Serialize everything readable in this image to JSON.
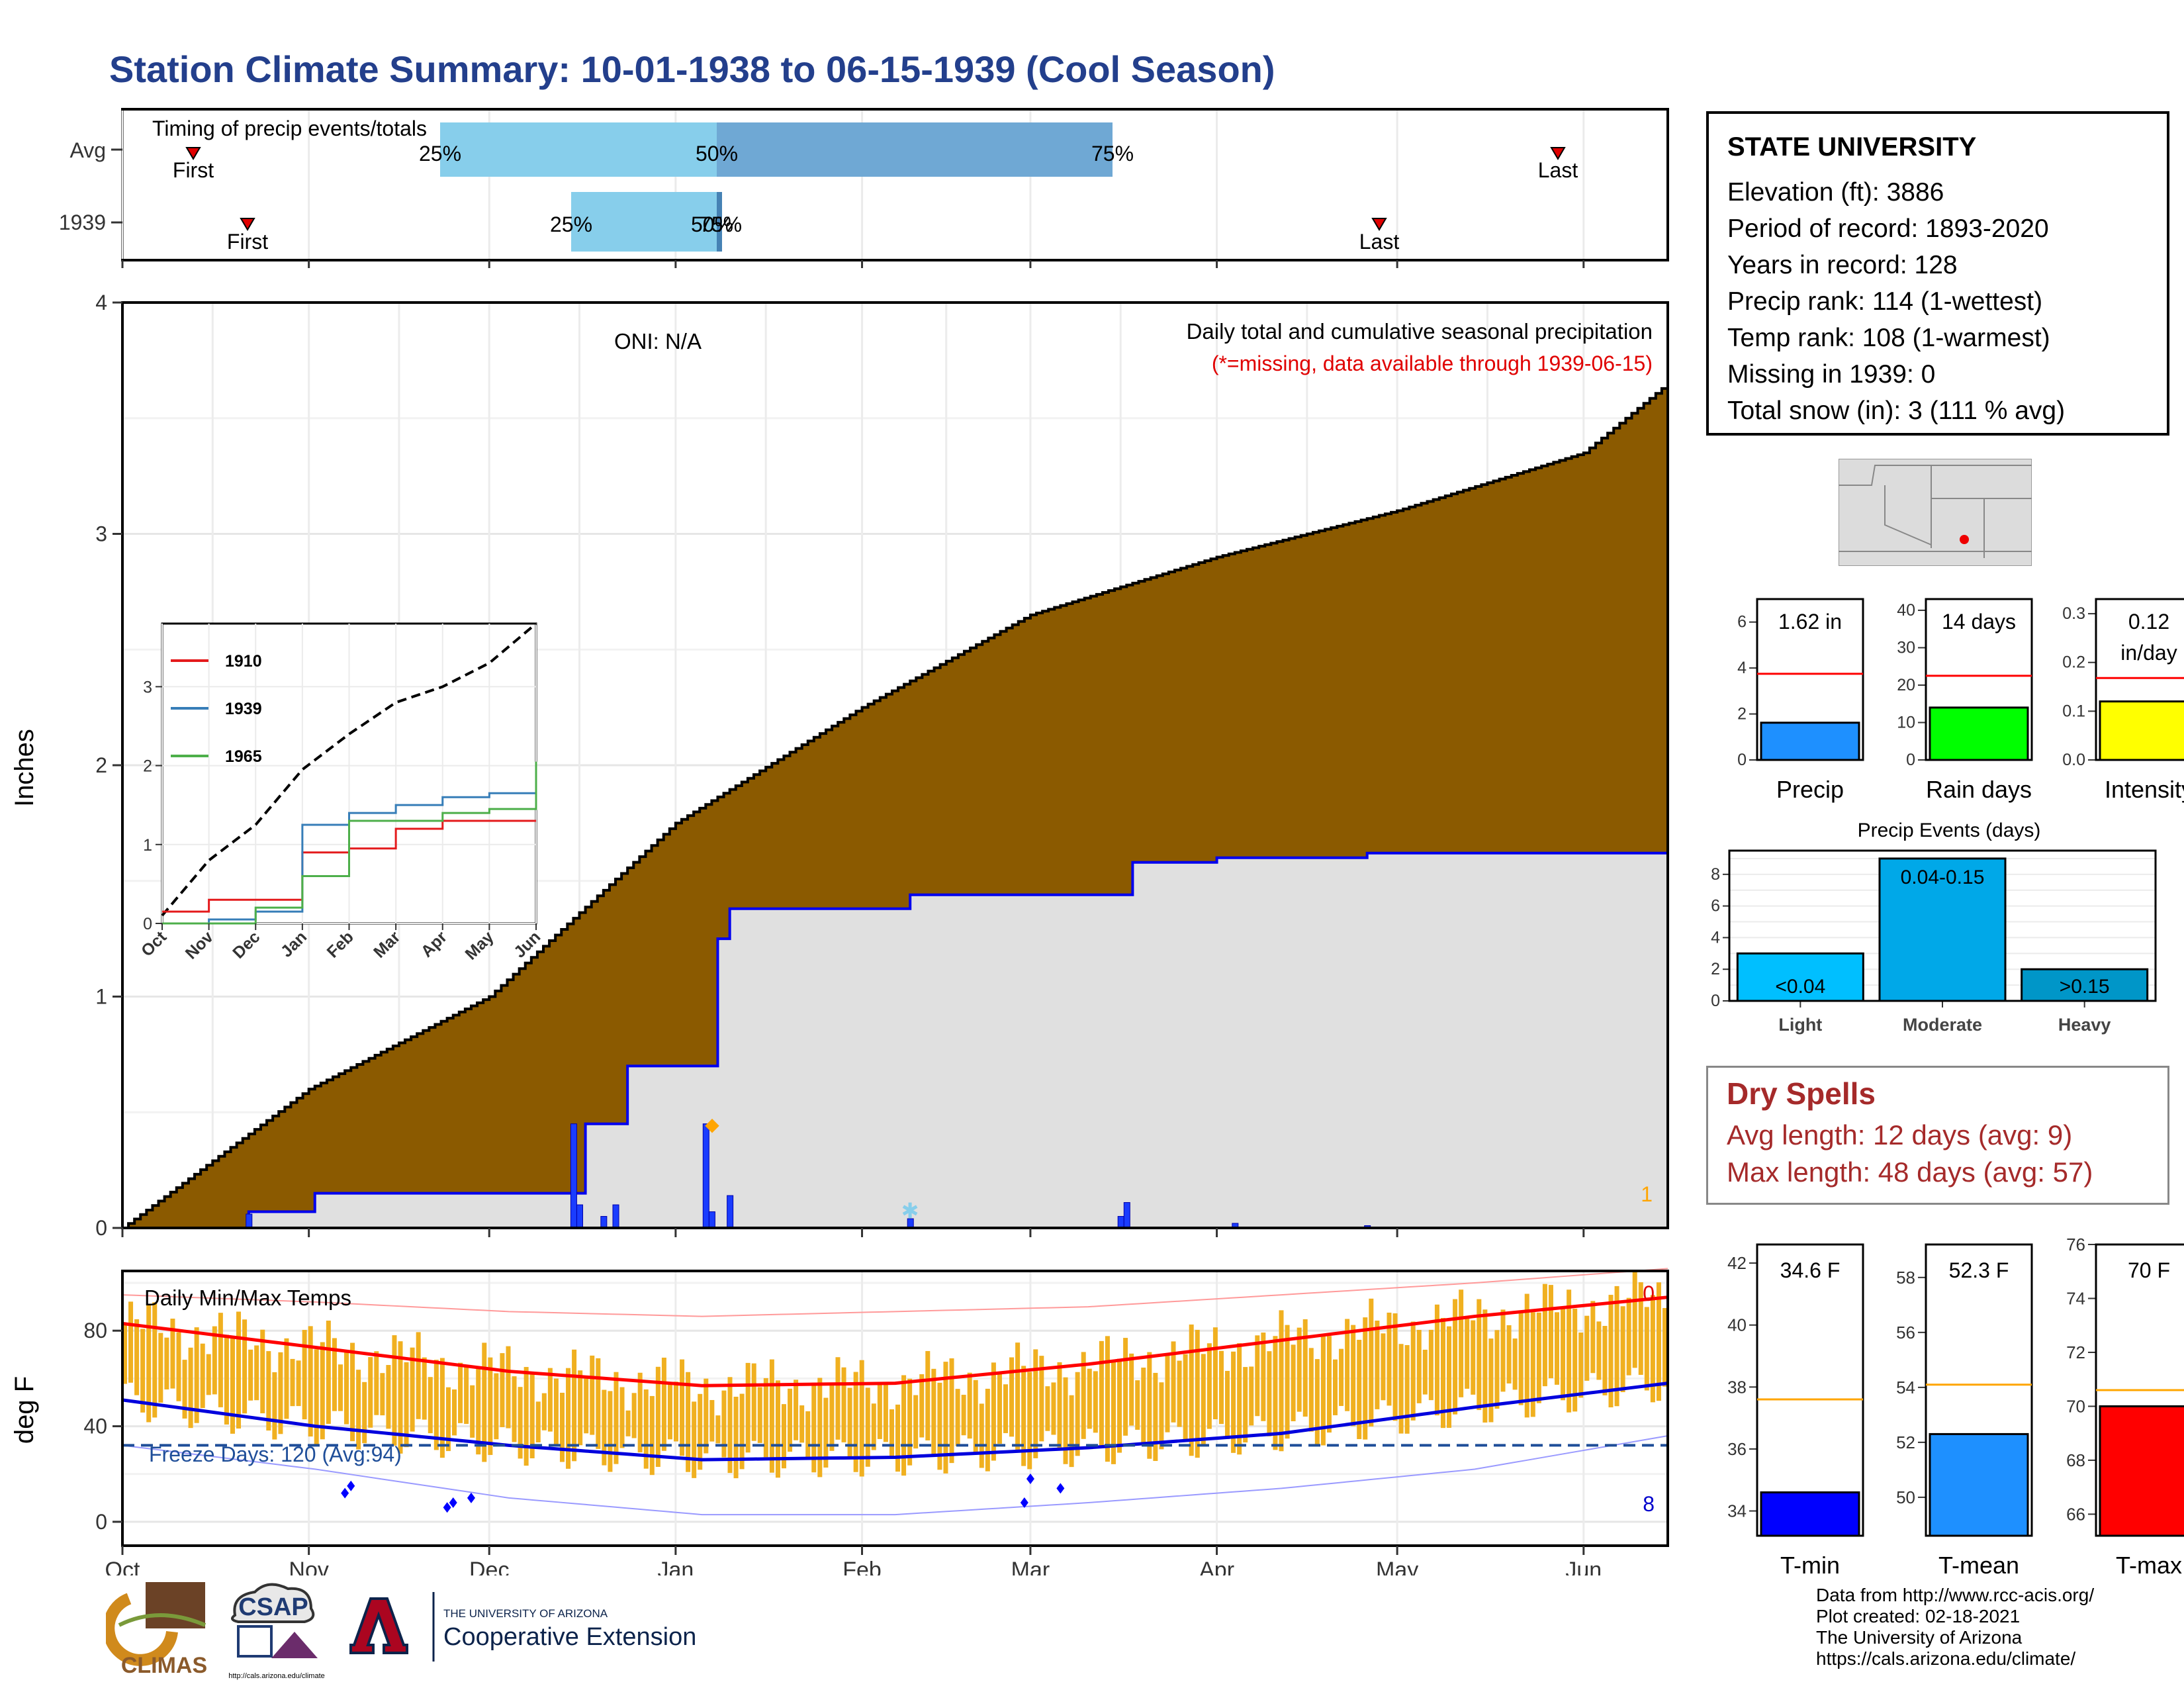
{
  "page_title": "Station Climate Summary: 10-01-1938 to 06-15-1939 (Cool Season)",
  "timing": {
    "title": "Timing of precip events/totals",
    "rows": [
      {
        "label": "Avg",
        "first_label": "First",
        "last_label": "Last",
        "q25": "25%",
        "q50": "50%",
        "q75": "75%"
      },
      {
        "label": "1939",
        "first_label": "First",
        "last_label": "Last",
        "q25": "25%",
        "q50": "50%",
        "q75": "75%"
      }
    ]
  },
  "main_plot": {
    "ylabel": "Inches",
    "yticks": [
      "0",
      "1",
      "2",
      "3",
      "4"
    ],
    "months": [
      "Oct",
      "Nov",
      "Dec",
      "Jan",
      "Feb",
      "Mar",
      "Apr",
      "May",
      "Jun"
    ],
    "oni": "ONI: N/A",
    "header": "Daily total and cumulative seasonal precipitation",
    "missing_note": "(*=missing, data available through 1939-06-15)",
    "corner_count": "1"
  },
  "inset": {
    "yticks": [
      "0",
      "1",
      "2",
      "3"
    ],
    "months": [
      "Oct",
      "Nov",
      "Dec",
      "Jan",
      "Feb",
      "Mar",
      "Apr",
      "May",
      "Jun"
    ],
    "legend": [
      {
        "name": "1910",
        "color": "#e41a1c"
      },
      {
        "name": "1939",
        "color": "#377eb8"
      },
      {
        "name": "1965",
        "color": "#4daf4a"
      }
    ]
  },
  "temp_plot": {
    "title": "Daily Min/Max Temps",
    "ylabel": "deg F",
    "yticks": [
      "0",
      "40",
      "80"
    ],
    "freeze_label": "Freeze Days: 120 (Avg:94)",
    "top_count": "0",
    "bottom_count": "8"
  },
  "station": {
    "name": "STATE UNIVERSITY",
    "lines": [
      "Elevation (ft): 3886",
      "Period of record: 1893-2020",
      "Years in record: 128",
      "Precip rank: 114 (1-wettest)",
      "Temp rank: 108 (1-warmest)",
      "Missing in 1939: 0",
      "Total snow (in): 3 (111 % avg)"
    ]
  },
  "mini_bars": [
    {
      "label": "Precip",
      "value_label": "1.62 in",
      "value": 1.62,
      "avg": 3.75,
      "ymax": 7,
      "yticks": [
        "0",
        "2",
        "4",
        "6"
      ],
      "color": "#1e90ff"
    },
    {
      "label": "Rain days",
      "value_label": "14 days",
      "value": 14,
      "avg": 22.5,
      "ymax": 43,
      "yticks": [
        "0",
        "10",
        "20",
        "30",
        "40"
      ],
      "color": "#00ff00"
    },
    {
      "label": "Intensity",
      "value_label": "0.12 in/day",
      "value": 0.12,
      "avg": 0.168,
      "ymax": 0.33,
      "yticks": [
        "0.0",
        "0.1",
        "0.2",
        "0.3"
      ],
      "color": "#ffff00"
    }
  ],
  "events": {
    "title": "Precip Events (days)",
    "yticks": [
      "0",
      "2",
      "4",
      "6",
      "8"
    ],
    "bars": [
      {
        "label": "Light",
        "range": "<0.04",
        "value": 3,
        "color": "#00bfff"
      },
      {
        "label": "Moderate",
        "range": "0.04-0.15",
        "value": 9,
        "color": "#00a8e8"
      },
      {
        "label": "Heavy",
        "range": ">0.15",
        "value": 2,
        "color": "#0096c8"
      }
    ]
  },
  "dry_spells": {
    "title": "Dry Spells",
    "avg_line": "Avg length: 12 days (avg: 9)",
    "max_line": "Max length: 48 days (avg: 57)"
  },
  "temp_bars": [
    {
      "label": "T-min",
      "value_label": "34.6 F",
      "value": 34.6,
      "avg": 37.6,
      "ymin": 33.2,
      "ymax": 42.6,
      "yticks": [
        "34",
        "36",
        "38",
        "40",
        "42"
      ],
      "color": "#0000ff"
    },
    {
      "label": "T-mean",
      "value_label": "52.3 F",
      "value": 52.3,
      "avg": 54.1,
      "ymin": 48.6,
      "ymax": 59.2,
      "yticks": [
        "50",
        "52",
        "54",
        "56",
        "58"
      ],
      "color": "#1e90ff"
    },
    {
      "label": "T-max",
      "value_label": "70 F",
      "value": 70,
      "avg": 70.6,
      "ymin": 65.2,
      "ymax": 76.0,
      "yticks": [
        "66",
        "68",
        "70",
        "72",
        "74",
        "76"
      ],
      "color": "#ff0000"
    }
  ],
  "credits": [
    "Data from http://www.rcc-acis.org/",
    "Plot created: 02-18-2021",
    "The University of Arizona",
    "https://cals.arizona.edu/climate/"
  ],
  "logos": {
    "climas": "CLIMAS",
    "csap": "CSAP",
    "csap_url": "http://cals.arizona.edu/climate",
    "ua_small": "THE UNIVERSITY OF ARIZONA",
    "ua_big": "Cooperative Extension"
  },
  "chart_data": [
    {
      "type": "line",
      "title": "Daily total and cumulative seasonal precipitation",
      "ylabel": "Inches",
      "ylim": [
        0,
        4
      ],
      "x_range": [
        "1938-10-01",
        "1939-06-15"
      ],
      "series": [
        {
          "name": "",
          "x": [
            "1938-10-01",
            "1938-11-01",
            "1938-12-01",
            "1939-01-01",
            "1939-02-01",
            "1939-03-01",
            "1939-04-01",
            "1939-05-01",
            "1939-06-01",
            "1939-06-15"
          ],
          "values": [
            0,
            0.6,
            1.0,
            1.75,
            2.25,
            2.65,
            2.9,
            3.1,
            3.35,
            3.65
          ]
        },
        {
          "name": "1939",
          "x": [
            "1938-10-01",
            "1938-10-22",
            "1938-11-02",
            "1938-12-15",
            "1938-12-17",
            "1938-12-24",
            "1939-01-06",
            "1939-01-08",
            "1939-01-10",
            "1939-02-09",
            "1939-03-18",
            "1939-04-01",
            "1939-04-26",
            "1939-06-15"
          ],
          "values": [
            0,
            0.07,
            0.15,
            0.15,
            0.45,
            0.7,
            0.7,
            1.25,
            1.38,
            1.44,
            1.58,
            1.6,
            1.62,
            1.62
          ]
        }
      ],
      "daily_bars": {
        "x": [
          "1938-10-22",
          "1938-12-15",
          "1938-12-16",
          "1938-12-20",
          "1938-12-22",
          "1939-01-06",
          "1939-01-07",
          "1939-01-10",
          "1939-02-09",
          "1939-03-16",
          "1939-03-17",
          "1939-04-04",
          "1939-04-26"
        ],
        "values": [
          0.06,
          0.45,
          0.1,
          0.05,
          0.1,
          0.45,
          0.07,
          0.14,
          0.04,
          0.05,
          0.11,
          0.02,
          0.01
        ]
      }
    },
    {
      "type": "line",
      "title": "",
      "ylim": [
        0,
        3.8
      ],
      "x": [
        "Oct",
        "Nov",
        "Dec",
        "Jan",
        "Feb",
        "Mar",
        "Apr",
        "May",
        "Jun"
      ],
      "series": [
        {
          "name": "",
          "values": [
            0.1,
            0.8,
            1.25,
            1.95,
            2.4,
            2.8,
            3.0,
            3.3,
            3.8
          ]
        },
        {
          "name": "1910",
          "values": [
            0.15,
            0.3,
            0.3,
            0.9,
            0.95,
            1.2,
            1.3,
            1.3,
            1.3
          ]
        },
        {
          "name": "1939",
          "values": [
            0,
            0.05,
            0.15,
            1.25,
            1.4,
            1.5,
            1.6,
            1.65,
            1.65
          ]
        },
        {
          "name": "1965",
          "values": [
            0,
            0,
            0.2,
            0.6,
            1.3,
            1.3,
            1.4,
            1.45,
            2.05
          ]
        }
      ]
    },
    {
      "type": "bar",
      "title": "Daily Min/Max Temps",
      "ylabel": "deg F",
      "ylim": [
        -10,
        105
      ],
      "x": [
        "Oct",
        "Nov",
        "Dec",
        "Jan",
        "Feb",
        "Mar",
        "Apr",
        "May",
        "Jun"
      ],
      "series": [
        {
          "name": "",
          "values": [
            83,
            73,
            63,
            57,
            58,
            66,
            76,
            86,
            94
          ]
        },
        {
          "name": "",
          "values": [
            51,
            40,
            32,
            26,
            27,
            31,
            37,
            48,
            58
          ]
        },
        {
          "name": "",
          "values": [
            95,
            92,
            88,
            86,
            88,
            90,
            95,
            100,
            106
          ]
        },
        {
          "name": "",
          "values": [
            32,
            22,
            10,
            3,
            3,
            8,
            14,
            22,
            36
          ]
        }
      ],
      "freeze_threshold": 32
    }
  ]
}
